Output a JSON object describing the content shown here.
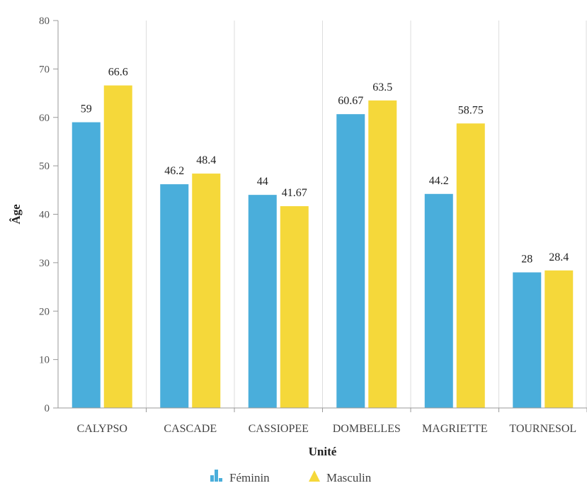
{
  "chart_data": {
    "type": "bar",
    "xlabel": "Unité",
    "ylabel": "Âge",
    "ylim": [
      0,
      80
    ],
    "yticks": [
      0,
      10,
      20,
      30,
      40,
      50,
      60,
      70,
      80
    ],
    "categories": [
      "CALYPSO",
      "CASCADE",
      "CASSIOPEE",
      "DOMBELLES",
      "MAGRIETTE",
      "TOURNESOL"
    ],
    "series": [
      {
        "name": "Féminin",
        "color": "#4aaedb",
        "values": [
          59,
          46.2,
          44,
          60.67,
          44.2,
          28
        ],
        "labels": [
          "59",
          "46.2",
          "44",
          "60.67",
          "44.2",
          "28"
        ]
      },
      {
        "name": "Masculin",
        "color": "#f5d83a",
        "values": [
          66.6,
          48.4,
          41.67,
          63.5,
          58.75,
          28.4
        ],
        "labels": [
          "66.6",
          "48.4",
          "41.67",
          "63.5",
          "58.75",
          "28.4"
        ]
      }
    ],
    "grid": "vertical",
    "legend": "bottom-center"
  }
}
